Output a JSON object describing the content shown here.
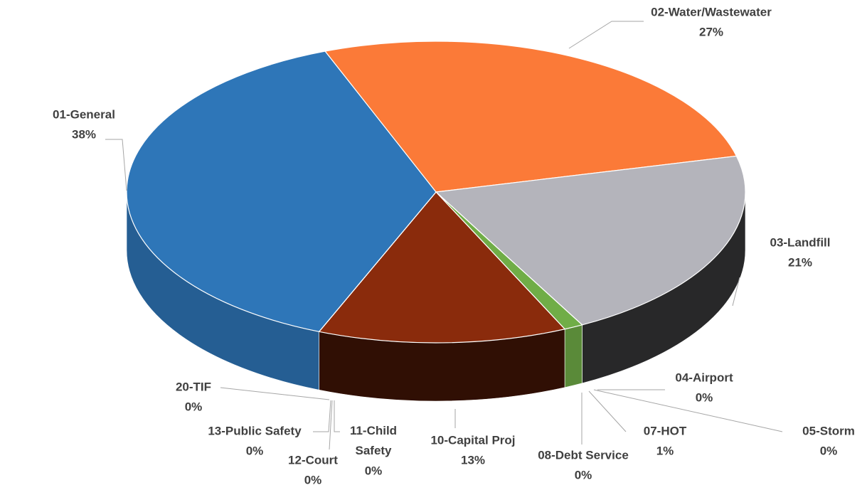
{
  "chart_data": {
    "type": "pie",
    "categories": [
      "02-Water/Wastewater",
      "03-Landfill",
      "04-Airport",
      "05-Storm",
      "07-HOT",
      "08-Debt Service",
      "10-Capital Proj",
      "11-Child Safety",
      "12-Court",
      "13-Public Safety",
      "20-TIF",
      "01-General"
    ],
    "values": [
      27,
      21,
      0,
      0,
      1,
      0,
      13,
      0,
      0,
      0,
      0,
      38
    ],
    "value_labels": [
      "27%",
      "21%",
      "0%",
      "0%",
      "1%",
      "0%",
      "13%",
      "0%",
      "0%",
      "0%",
      "0%",
      "38%"
    ],
    "colors": [
      "#fb7a38",
      "#b4b4bb",
      "#ffc000",
      "#5b9bd5",
      "#70ad47",
      "#264478",
      "#8a2b0c",
      "#9e480e",
      "#636363",
      "#997300",
      "#255e91",
      "#2e76b8"
    ]
  }
}
